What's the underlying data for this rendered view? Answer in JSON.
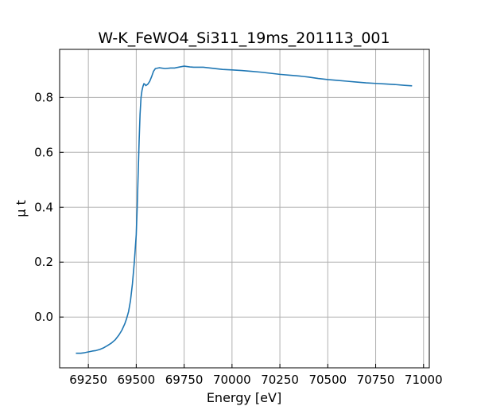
{
  "chart_data": {
    "type": "line",
    "title": "W-K_FeWO4_Si311_19ms_201113_001",
    "xlabel": "Energy [eV]",
    "ylabel": "μ t",
    "xlim": [
      69100,
      71030
    ],
    "ylim": [
      -0.185,
      0.975
    ],
    "x_ticks": [
      69250,
      69500,
      69750,
      70000,
      70250,
      70500,
      70750,
      71000
    ],
    "y_ticks": [
      0.0,
      0.2,
      0.4,
      0.6,
      0.8
    ],
    "y_tick_labels": [
      "0.0",
      "0.2",
      "0.4",
      "0.6",
      "0.8"
    ],
    "grid": true,
    "tick_direction": "in",
    "series": [
      {
        "color": "#1f77b4",
        "x": [
          69185,
          69210,
          69230,
          69250,
          69270,
          69290,
          69310,
          69330,
          69350,
          69370,
          69390,
          69410,
          69425,
          69440,
          69450,
          69460,
          69470,
          69480,
          69490,
          69500,
          69505,
          69510,
          69515,
          69520,
          69525,
          69530,
          69535,
          69540,
          69545,
          69550,
          69560,
          69570,
          69580,
          69590,
          69600,
          69620,
          69650,
          69680,
          69700,
          69720,
          69750,
          69780,
          69800,
          69850,
          69900,
          69950,
          70000,
          70050,
          70100,
          70150,
          70200,
          70250,
          70300,
          70350,
          70400,
          70450,
          70500,
          70550,
          70600,
          70650,
          70700,
          70750,
          70800,
          70850,
          70900,
          70940
        ],
        "y": [
          -0.132,
          -0.132,
          -0.13,
          -0.127,
          -0.124,
          -0.122,
          -0.118,
          -0.112,
          -0.104,
          -0.095,
          -0.083,
          -0.065,
          -0.048,
          -0.025,
          -0.005,
          0.02,
          0.06,
          0.12,
          0.2,
          0.3,
          0.4,
          0.52,
          0.64,
          0.74,
          0.8,
          0.825,
          0.84,
          0.85,
          0.848,
          0.843,
          0.848,
          0.858,
          0.875,
          0.895,
          0.905,
          0.908,
          0.905,
          0.907,
          0.907,
          0.91,
          0.914,
          0.911,
          0.91,
          0.91,
          0.906,
          0.902,
          0.9,
          0.898,
          0.895,
          0.892,
          0.888,
          0.884,
          0.881,
          0.878,
          0.874,
          0.869,
          0.865,
          0.862,
          0.859,
          0.856,
          0.853,
          0.851,
          0.849,
          0.847,
          0.844,
          0.842
        ]
      }
    ]
  }
}
